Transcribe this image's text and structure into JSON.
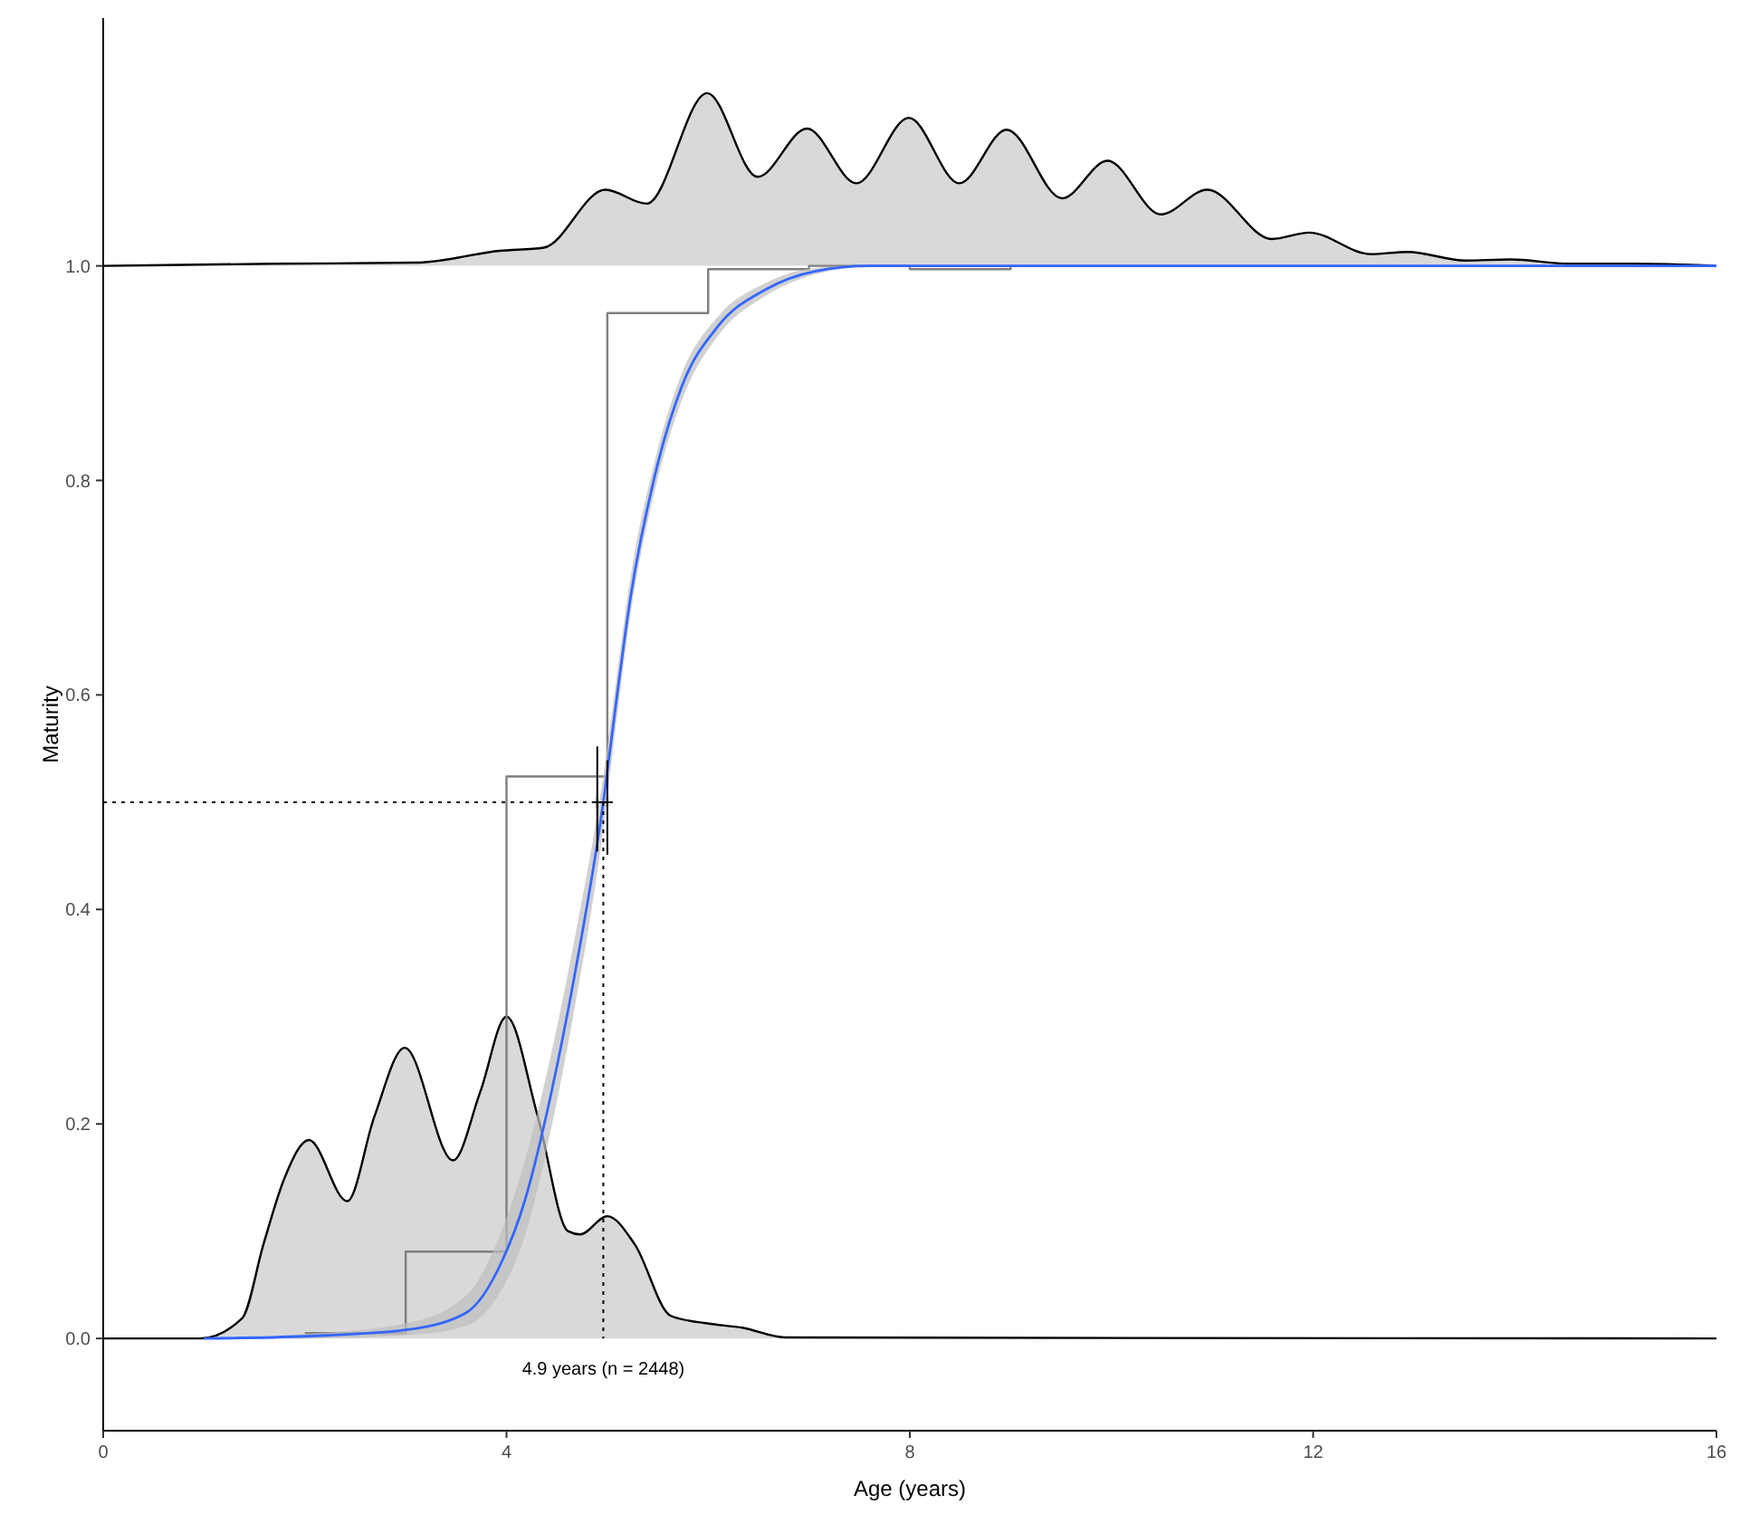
{
  "chart_data": {
    "type": "line",
    "xlabel": "Age (years)",
    "ylabel": "Maturity",
    "xlim": [
      0,
      16
    ],
    "ylim": [
      -0.086,
      1.231
    ],
    "xticks": [
      0,
      4,
      8,
      12,
      16
    ],
    "yticks": [
      {
        "value": 0,
        "label": "0.0"
      },
      {
        "value": 0.2,
        "label": "0.2"
      },
      {
        "value": 0.4,
        "label": "0.4"
      },
      {
        "value": 0.6,
        "label": "0.6"
      },
      {
        "value": 0.8,
        "label": "0.8"
      },
      {
        "value": 1,
        "label": "1.0"
      }
    ],
    "series": [
      {
        "type": "area",
        "color": "#d9d9d9",
        "x": [
          0,
          0.96,
          1.38,
          1.59,
          1.8,
          2.04,
          2.42,
          2.69,
          2.99,
          3.47,
          3.74,
          4.0,
          4.31,
          4.61,
          4.73,
          5.0,
          5.27,
          5.63,
          5.99,
          6.34,
          6.76,
          16
        ],
        "values": [
          0,
          0,
          0.019,
          0.088,
          0.15,
          0.185,
          0.128,
          0.207,
          0.271,
          0.166,
          0.23,
          0.3,
          0.207,
          0.1,
          0.097,
          0.114,
          0.088,
          0.021,
          0.014,
          0.01,
          0.001,
          0
        ]
      },
      {
        "type": "area",
        "color": "#d9d9d9",
        "x": [
          0,
          1.7,
          3.11,
          3.93,
          4.37,
          4.98,
          5.39,
          5.99,
          6.49,
          6.98,
          7.47,
          7.99,
          8.49,
          8.96,
          9.51,
          9.96,
          10.49,
          10.95,
          11.59,
          11.96,
          12.57,
          12.94,
          13.51,
          13.96,
          14.53,
          15.18,
          16
        ],
        "values": [
          1,
          1.002,
          1.003,
          1.014,
          1.017,
          1.071,
          1.058,
          1.161,
          1.083,
          1.128,
          1.077,
          1.138,
          1.077,
          1.127,
          1.063,
          1.098,
          1.048,
          1.071,
          1.025,
          1.031,
          1.011,
          1.013,
          1.005,
          1.006,
          1.002,
          1.002,
          1
        ]
      },
      {
        "type": "step",
        "color": "#7f7f7f",
        "x": [
          2,
          3,
          4,
          5,
          6,
          7,
          8,
          9
        ],
        "values": [
          0.005,
          0.081,
          0.524,
          0.956,
          0.997,
          1,
          0.997,
          1
        ]
      },
      {
        "color": "#3366ff",
        "x": [
          1,
          2,
          3,
          3.6,
          3.95,
          4.18,
          4.43,
          4.67,
          4.96,
          5.09,
          5.23,
          5.47,
          5.74,
          6.1,
          6.57,
          7.06,
          7.6,
          16
        ],
        "values": [
          0,
          0.002,
          0.008,
          0.024,
          0.071,
          0.128,
          0.223,
          0.336,
          0.5,
          0.595,
          0.691,
          0.804,
          0.888,
          0.944,
          0.978,
          0.995,
          1,
          1
        ],
        "lower": [
          0,
          0,
          0.003,
          0.012,
          0.045,
          0.095,
          0.19,
          0.305,
          0.475,
          0.575,
          0.675,
          0.79,
          0.875,
          0.935,
          0.972,
          0.992,
          0.999,
          1
        ],
        "upper": [
          0,
          0.004,
          0.014,
          0.04,
          0.1,
          0.165,
          0.26,
          0.37,
          0.525,
          0.615,
          0.71,
          0.818,
          0.9,
          0.953,
          0.984,
          0.998,
          1,
          1
        ]
      },
      {
        "type": "scatter",
        "color": "#000000",
        "marker": "cross",
        "x": [
          4.9,
          5.0
        ],
        "values": [
          0.5,
          0.5
        ],
        "errors": [
          [
            0.454,
            0.552
          ],
          [
            0.451,
            0.539
          ]
        ]
      }
    ],
    "ref_lines": [
      {
        "axis": "y",
        "value": 0.5,
        "line_style": "dotted"
      },
      {
        "axis": "x",
        "value": 4.96,
        "line_style": "dotted"
      }
    ],
    "annotations": [
      "4.9 years (n = 2448)"
    ]
  }
}
